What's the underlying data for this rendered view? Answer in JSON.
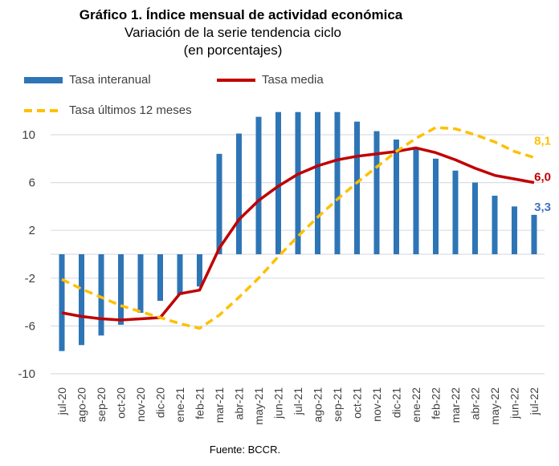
{
  "chart_data": {
    "type": "bar+line",
    "title": "Gráfico 1. Índice mensual de actividad económica",
    "subtitle": "Variación de la serie tendencia ciclo",
    "subtitle2": "(en porcentajes)",
    "source": "Fuente: BCCR.",
    "ylim": [
      -10,
      12
    ],
    "yticks": [
      10,
      6,
      2,
      -2,
      -6,
      -10
    ],
    "grid": true,
    "legend_position": "top-left",
    "categories": [
      "jul-20",
      "ago-20",
      "sep-20",
      "oct-20",
      "nov-20",
      "dic-20",
      "ene-21",
      "feb-21",
      "mar-21",
      "abr-21",
      "may-21",
      "jun-21",
      "jul-21",
      "ago-21",
      "sep-21",
      "oct-21",
      "nov-21",
      "dic-21",
      "ene-22",
      "feb-22",
      "mar-22",
      "abr-22",
      "may-22",
      "jun-22",
      "jul-22"
    ],
    "series": [
      {
        "name": "Tasa interanual",
        "type": "bar",
        "color": "#2E75B6",
        "label": "3,3",
        "values": [
          -8.1,
          -7.6,
          -6.8,
          -5.9,
          -4.9,
          -3.9,
          -3.4,
          -2.7,
          8.4,
          10.1,
          11.5,
          11.9,
          11.9,
          11.9,
          11.9,
          11.1,
          10.3,
          9.6,
          8.8,
          8.0,
          7.0,
          6.0,
          4.9,
          4.0,
          3.3
        ]
      },
      {
        "name": "Tasa media",
        "type": "line",
        "color": "#C00000",
        "label": "6,0",
        "values": [
          -4.9,
          -5.2,
          -5.4,
          -5.5,
          -5.4,
          -5.3,
          -3.3,
          -3.0,
          0.5,
          2.9,
          4.5,
          5.7,
          6.7,
          7.4,
          7.9,
          8.2,
          8.4,
          8.6,
          8.9,
          8.5,
          7.9,
          7.2,
          6.6,
          6.3,
          6.0
        ]
      },
      {
        "name": "Tasa últimos 12 meses",
        "type": "dashed-line",
        "color": "#FFC000",
        "label": "8,1",
        "values": [
          -2.1,
          -2.9,
          -3.6,
          -4.3,
          -4.8,
          -5.3,
          -5.8,
          -6.2,
          -5.1,
          -3.6,
          -2.0,
          -0.2,
          1.5,
          3.1,
          4.6,
          6.0,
          7.3,
          8.6,
          9.7,
          10.6,
          10.5,
          10.0,
          9.4,
          8.6,
          8.1
        ]
      }
    ]
  }
}
